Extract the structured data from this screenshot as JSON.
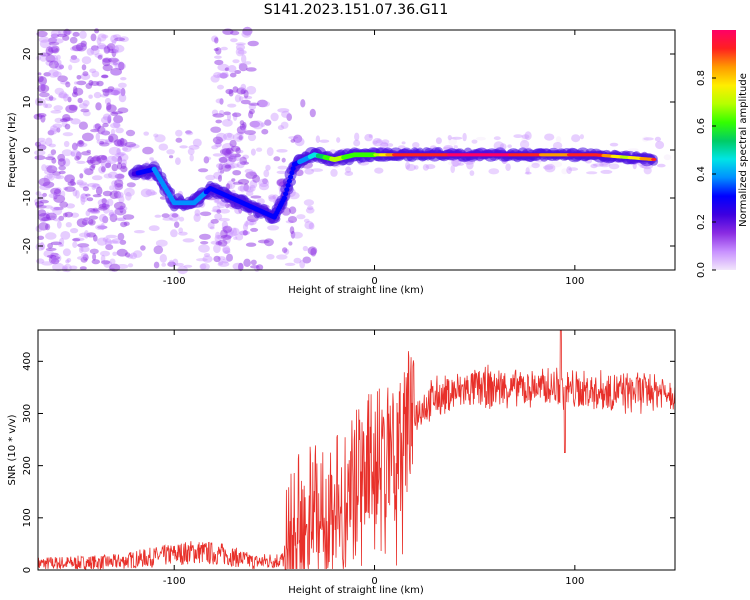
{
  "figure": {
    "title": "S141.2023.151.07.36.G11"
  },
  "colors": {
    "snr_line": "#e8302a",
    "frame": "#000000",
    "colormap": [
      "#f2e6fb",
      "#c890ff",
      "#8a2be2",
      "#3d00e0",
      "#0000ff",
      "#0090ff",
      "#00e5e5",
      "#00cc66",
      "#33ff00",
      "#b5ff00",
      "#ffee00",
      "#ff9a00",
      "#ff2020",
      "#ff0066"
    ]
  },
  "chart_data": [
    {
      "type": "heatmap",
      "title": "S141.2023.151.07.36.G11",
      "xlabel": "Height of straight line (km)",
      "ylabel": "Frequency (Hz)",
      "xlim": [
        -168,
        150
      ],
      "ylim": [
        -25,
        25
      ],
      "xticks": [
        -100,
        0,
        100
      ],
      "yticks": [
        -20,
        -10,
        0,
        10,
        20
      ],
      "colorbar": {
        "label": "Normalized spectral amplitude",
        "range": [
          0,
          1
        ],
        "ticks": [
          0.0,
          0.2,
          0.4,
          0.6,
          0.8
        ]
      },
      "ridge": [
        {
          "x": -120,
          "y": -5,
          "amp": 0.25
        },
        {
          "x": -110,
          "y": -4,
          "amp": 0.35
        },
        {
          "x": -100,
          "y": -11,
          "amp": 0.38
        },
        {
          "x": -90,
          "y": -11,
          "amp": 0.36
        },
        {
          "x": -82,
          "y": -8,
          "amp": 0.34
        },
        {
          "x": -50,
          "y": -14,
          "amp": 0.3
        },
        {
          "x": -45,
          "y": -10,
          "amp": 0.3
        },
        {
          "x": -40,
          "y": -3,
          "amp": 0.32
        },
        {
          "x": -30,
          "y": -1,
          "amp": 0.45
        },
        {
          "x": -20,
          "y": -2,
          "amp": 0.7
        },
        {
          "x": -10,
          "y": -1,
          "amp": 0.6
        },
        {
          "x": 0,
          "y": -1,
          "amp": 0.65
        },
        {
          "x": 10,
          "y": -1,
          "amp": 0.9
        },
        {
          "x": 30,
          "y": -1,
          "amp": 0.95
        },
        {
          "x": 60,
          "y": -1,
          "amp": 1.0
        },
        {
          "x": 90,
          "y": -1,
          "amp": 0.85
        },
        {
          "x": 110,
          "y": -1,
          "amp": 0.95
        },
        {
          "x": 125,
          "y": -1.5,
          "amp": 0.7
        },
        {
          "x": 140,
          "y": -2,
          "amp": 0.9
        }
      ]
    },
    {
      "type": "line",
      "xlabel": "Height of straight line (km)",
      "ylabel": "SNR (10 * v/v)",
      "xlim": [
        -168,
        150
      ],
      "ylim": [
        0,
        460
      ],
      "xticks": [
        -100,
        0,
        100
      ],
      "yticks": [
        0,
        100,
        200,
        300,
        400
      ],
      "envelope": [
        {
          "x": -168,
          "y": 12
        },
        {
          "x": -130,
          "y": 15
        },
        {
          "x": -110,
          "y": 25
        },
        {
          "x": -90,
          "y": 35
        },
        {
          "x": -75,
          "y": 30
        },
        {
          "x": -60,
          "y": 15
        },
        {
          "x": -45,
          "y": 20
        },
        {
          "x": -38,
          "y": 70
        },
        {
          "x": -30,
          "y": 140
        },
        {
          "x": -20,
          "y": 110
        },
        {
          "x": -10,
          "y": 180
        },
        {
          "x": 0,
          "y": 220
        },
        {
          "x": 10,
          "y": 250
        },
        {
          "x": 20,
          "y": 300
        },
        {
          "x": 30,
          "y": 330
        },
        {
          "x": 50,
          "y": 350
        },
        {
          "x": 80,
          "y": 350
        },
        {
          "x": 95,
          "y": 345
        },
        {
          "x": 120,
          "y": 340
        },
        {
          "x": 150,
          "y": 345
        }
      ],
      "peak": {
        "x": 93,
        "y": 460
      },
      "dip": {
        "x": 95,
        "y": 225
      }
    }
  ]
}
